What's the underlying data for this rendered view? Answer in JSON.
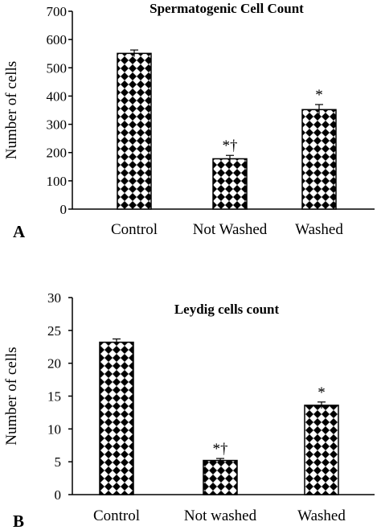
{
  "chart_data": [
    {
      "type": "bar",
      "panel_label": "A",
      "title": "Spermatogenic Cell Count",
      "ylabel": "Number of cells",
      "xlabel": "",
      "categories": [
        "Control",
        "Not Washed",
        "Washed"
      ],
      "values": [
        551,
        178,
        352
      ],
      "errors": [
        12,
        12,
        18
      ],
      "annotations": [
        "",
        "*†",
        "*"
      ],
      "ylim": [
        0,
        700
      ],
      "yticks": [
        0,
        100,
        200,
        300,
        400,
        500,
        600,
        700
      ],
      "grid": false,
      "legend": "none",
      "bar_pattern": "checkered diamond"
    },
    {
      "type": "bar",
      "panel_label": "B",
      "title": "Leydig cells count",
      "ylabel": "Number of cells",
      "xlabel": "",
      "categories": [
        "Control",
        "Not washed",
        "Washed"
      ],
      "values": [
        23.2,
        5.2,
        13.6
      ],
      "errors": [
        0.5,
        0.3,
        0.5
      ],
      "annotations": [
        "",
        "*†",
        "*"
      ],
      "ylim": [
        0,
        30
      ],
      "yticks": [
        0,
        5,
        10,
        15,
        20,
        25,
        30
      ],
      "grid": false,
      "legend": "none",
      "bar_pattern": "checkered diamond"
    }
  ]
}
